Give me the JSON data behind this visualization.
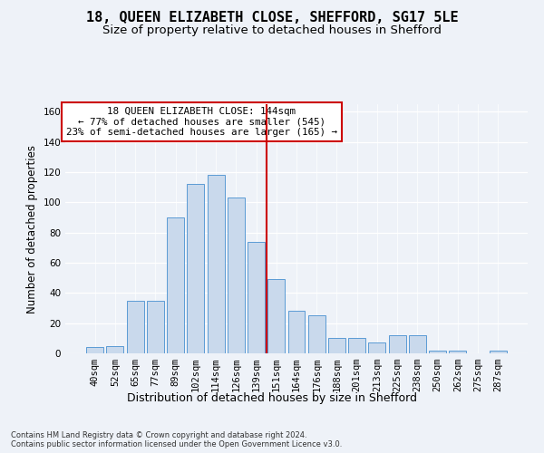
{
  "title": "18, QUEEN ELIZABETH CLOSE, SHEFFORD, SG17 5LE",
  "subtitle": "Size of property relative to detached houses in Shefford",
  "xlabel": "Distribution of detached houses by size in Shefford",
  "ylabel": "Number of detached properties",
  "categories": [
    "40sqm",
    "52sqm",
    "65sqm",
    "77sqm",
    "89sqm",
    "102sqm",
    "114sqm",
    "126sqm",
    "139sqm",
    "151sqm",
    "164sqm",
    "176sqm",
    "188sqm",
    "201sqm",
    "213sqm",
    "225sqm",
    "238sqm",
    "250sqm",
    "262sqm",
    "275sqm",
    "287sqm"
  ],
  "values": [
    4,
    5,
    35,
    35,
    90,
    112,
    118,
    103,
    74,
    49,
    28,
    25,
    10,
    10,
    7,
    12,
    12,
    2,
    2,
    0,
    2
  ],
  "bar_color": "#c9d9ec",
  "bar_edge_color": "#5b9bd5",
  "vline_x": 8.5,
  "vline_color": "#cc0000",
  "annotation_text": "18 QUEEN ELIZABETH CLOSE: 144sqm\n← 77% of detached houses are smaller (545)\n23% of semi-detached houses are larger (165) →",
  "annotation_box_color": "#ffffff",
  "annotation_box_edge": "#cc0000",
  "ylim": [
    0,
    165
  ],
  "yticks": [
    0,
    20,
    40,
    60,
    80,
    100,
    120,
    140,
    160
  ],
  "footer": "Contains HM Land Registry data © Crown copyright and database right 2024.\nContains public sector information licensed under the Open Government Licence v3.0.",
  "bg_color": "#eef2f8",
  "plot_bg_color": "#eef2f8",
  "title_fontsize": 11,
  "subtitle_fontsize": 9.5,
  "axis_label_fontsize": 8.5,
  "tick_fontsize": 7.5,
  "footer_fontsize": 6.0
}
